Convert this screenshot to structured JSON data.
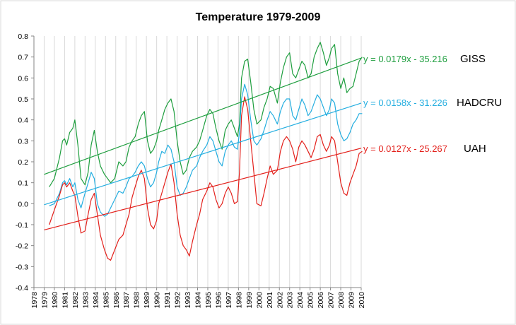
{
  "chart_data": {
    "type": "line",
    "title": "Temperature 1979-2009",
    "xlabel": "",
    "ylabel": "",
    "xlim": [
      1978,
      2010
    ],
    "ylim": [
      -0.4,
      0.8
    ],
    "y_ticks": [
      "-0.4",
      "-0.3",
      "-0.2",
      "-0.1",
      "0.0",
      "0.1",
      "0.2",
      "0.3",
      "0.4",
      "0.5",
      "0.6",
      "0.7",
      "0.8"
    ],
    "x_ticks": [
      "1978",
      "1979",
      "1980",
      "1981",
      "1982",
      "1983",
      "1984",
      "1985",
      "1986",
      "1987",
      "1988",
      "1989",
      "1990",
      "1991",
      "1992",
      "1993",
      "1994",
      "1995",
      "1996",
      "1997",
      "1998",
      "1999",
      "2000",
      "2001",
      "2002",
      "2003",
      "2004",
      "2005",
      "2006",
      "2007",
      "2008",
      "2009",
      "2010"
    ],
    "grid": {
      "vertical": true,
      "horizontal": false
    },
    "series": [
      {
        "name": "GISS",
        "color": "#1e9e3e",
        "x": [
          1979.5,
          1980.0,
          1980.5,
          1980.8,
          1981.0,
          1981.2,
          1981.5,
          1981.8,
          1982.0,
          1982.3,
          1982.6,
          1983.0,
          1983.3,
          1983.6,
          1983.9,
          1984.2,
          1984.5,
          1984.9,
          1985.2,
          1985.5,
          1985.9,
          1986.3,
          1986.7,
          1987.0,
          1987.3,
          1987.6,
          1987.9,
          1988.2,
          1988.5,
          1988.8,
          1989.1,
          1989.4,
          1989.7,
          1990.0,
          1990.2,
          1990.5,
          1990.8,
          1991.1,
          1991.4,
          1991.7,
          1992.0,
          1992.3,
          1992.6,
          1992.9,
          1993.2,
          1993.5,
          1993.9,
          1994.2,
          1994.5,
          1994.9,
          1995.2,
          1995.5,
          1995.8,
          1996.1,
          1996.4,
          1996.7,
          1997.0,
          1997.3,
          1997.6,
          1997.9,
          1998.1,
          1998.3,
          1998.6,
          1998.9,
          1999.2,
          1999.5,
          1999.8,
          2000.2,
          2000.5,
          2000.8,
          2001.1,
          2001.4,
          2001.8,
          2002.1,
          2002.4,
          2002.7,
          2003.0,
          2003.3,
          2003.6,
          2003.9,
          2004.2,
          2004.5,
          2004.8,
          2005.1,
          2005.4,
          2005.7,
          2006.0,
          2006.3,
          2006.6,
          2006.9,
          2007.1,
          2007.4,
          2007.7,
          2008.0,
          2008.3,
          2008.6,
          2008.9,
          2009.2,
          2009.5,
          2009.8,
          2010.1
        ],
        "values": [
          0.08,
          0.12,
          0.22,
          0.3,
          0.31,
          0.28,
          0.34,
          0.36,
          0.4,
          0.28,
          0.12,
          0.09,
          0.15,
          0.28,
          0.35,
          0.25,
          0.18,
          0.14,
          0.12,
          0.1,
          0.12,
          0.2,
          0.18,
          0.2,
          0.27,
          0.3,
          0.32,
          0.38,
          0.42,
          0.44,
          0.3,
          0.24,
          0.26,
          0.3,
          0.35,
          0.4,
          0.45,
          0.48,
          0.5,
          0.44,
          0.3,
          0.2,
          0.14,
          0.16,
          0.22,
          0.25,
          0.27,
          0.3,
          0.35,
          0.42,
          0.45,
          0.43,
          0.36,
          0.3,
          0.26,
          0.35,
          0.38,
          0.4,
          0.36,
          0.32,
          0.38,
          0.6,
          0.68,
          0.69,
          0.58,
          0.45,
          0.38,
          0.4,
          0.46,
          0.5,
          0.56,
          0.55,
          0.48,
          0.58,
          0.65,
          0.7,
          0.72,
          0.62,
          0.6,
          0.64,
          0.68,
          0.66,
          0.6,
          0.62,
          0.7,
          0.74,
          0.77,
          0.72,
          0.66,
          0.7,
          0.74,
          0.76,
          0.62,
          0.55,
          0.6,
          0.53,
          0.55,
          0.56,
          0.62,
          0.68,
          0.7
        ]
      },
      {
        "name": "HADCRU",
        "color": "#24aee0",
        "x": [
          1979.5,
          1980.0,
          1980.5,
          1980.8,
          1981.0,
          1981.2,
          1981.5,
          1981.8,
          1982.0,
          1982.3,
          1982.6,
          1983.0,
          1983.3,
          1983.6,
          1983.9,
          1984.2,
          1984.5,
          1984.9,
          1985.2,
          1985.5,
          1985.9,
          1986.3,
          1986.7,
          1987.0,
          1987.3,
          1987.6,
          1987.9,
          1988.2,
          1988.5,
          1988.8,
          1989.1,
          1989.4,
          1989.7,
          1990.0,
          1990.2,
          1990.5,
          1990.8,
          1991.1,
          1991.4,
          1991.7,
          1992.0,
          1992.3,
          1992.6,
          1992.9,
          1993.2,
          1993.5,
          1993.9,
          1994.2,
          1994.5,
          1994.9,
          1995.2,
          1995.5,
          1995.8,
          1996.1,
          1996.4,
          1996.7,
          1997.0,
          1997.3,
          1997.6,
          1997.9,
          1998.1,
          1998.3,
          1998.6,
          1998.9,
          1999.2,
          1999.5,
          1999.8,
          2000.2,
          2000.5,
          2000.8,
          2001.1,
          2001.4,
          2001.8,
          2002.1,
          2002.4,
          2002.7,
          2003.0,
          2003.3,
          2003.6,
          2003.9,
          2004.2,
          2004.5,
          2004.8,
          2005.1,
          2005.4,
          2005.7,
          2006.0,
          2006.3,
          2006.6,
          2006.9,
          2007.1,
          2007.4,
          2007.7,
          2008.0,
          2008.3,
          2008.6,
          2008.9,
          2009.2,
          2009.5,
          2009.8,
          2010.1
        ],
        "values": [
          -0.01,
          0.0,
          0.05,
          0.1,
          0.11,
          0.09,
          0.12,
          0.08,
          0.1,
          0.02,
          -0.02,
          0.05,
          0.1,
          0.15,
          0.12,
          0.0,
          -0.04,
          -0.06,
          -0.05,
          -0.02,
          0.02,
          0.06,
          0.05,
          0.08,
          0.12,
          0.13,
          0.15,
          0.18,
          0.2,
          0.18,
          0.12,
          0.08,
          0.1,
          0.15,
          0.2,
          0.25,
          0.24,
          0.28,
          0.26,
          0.2,
          0.08,
          0.04,
          0.05,
          0.08,
          0.12,
          0.16,
          0.18,
          0.22,
          0.25,
          0.28,
          0.32,
          0.3,
          0.25,
          0.2,
          0.18,
          0.25,
          0.28,
          0.3,
          0.27,
          0.26,
          0.34,
          0.5,
          0.57,
          0.52,
          0.4,
          0.3,
          0.28,
          0.31,
          0.35,
          0.4,
          0.44,
          0.42,
          0.38,
          0.44,
          0.48,
          0.5,
          0.5,
          0.42,
          0.4,
          0.45,
          0.5,
          0.47,
          0.42,
          0.44,
          0.48,
          0.52,
          0.5,
          0.46,
          0.42,
          0.45,
          0.5,
          0.48,
          0.38,
          0.33,
          0.3,
          0.31,
          0.34,
          0.38,
          0.4,
          0.43,
          0.43
        ]
      },
      {
        "name": "UAH",
        "color": "#e3201b",
        "x": [
          1979.5,
          1980.0,
          1980.5,
          1980.8,
          1981.0,
          1981.2,
          1981.5,
          1981.8,
          1982.0,
          1982.3,
          1982.6,
          1983.0,
          1983.3,
          1983.6,
          1983.9,
          1984.2,
          1984.5,
          1984.9,
          1985.2,
          1985.5,
          1985.9,
          1986.3,
          1986.7,
          1987.0,
          1987.3,
          1987.6,
          1987.9,
          1988.2,
          1988.5,
          1988.8,
          1989.1,
          1989.4,
          1989.7,
          1990.0,
          1990.2,
          1990.5,
          1990.8,
          1991.1,
          1991.4,
          1991.7,
          1992.0,
          1992.3,
          1992.6,
          1992.9,
          1993.2,
          1993.5,
          1993.9,
          1994.2,
          1994.5,
          1994.9,
          1995.2,
          1995.5,
          1995.8,
          1996.1,
          1996.4,
          1996.7,
          1997.0,
          1997.3,
          1997.6,
          1997.9,
          1998.1,
          1998.3,
          1998.6,
          1998.9,
          1999.2,
          1999.5,
          1999.8,
          2000.2,
          2000.5,
          2000.8,
          2001.1,
          2001.4,
          2001.8,
          2002.1,
          2002.4,
          2002.7,
          2003.0,
          2003.3,
          2003.6,
          2003.9,
          2004.2,
          2004.5,
          2004.8,
          2005.1,
          2005.4,
          2005.7,
          2006.0,
          2006.3,
          2006.6,
          2006.9,
          2007.1,
          2007.4,
          2007.7,
          2008.0,
          2008.3,
          2008.6,
          2008.9,
          2009.2,
          2009.5,
          2009.8,
          2010.1
        ],
        "values": [
          -0.1,
          -0.03,
          0.04,
          0.09,
          0.1,
          0.08,
          0.1,
          0.06,
          0.04,
          -0.06,
          -0.14,
          -0.13,
          -0.05,
          0.02,
          0.05,
          -0.05,
          -0.15,
          -0.22,
          -0.26,
          -0.27,
          -0.22,
          -0.17,
          -0.15,
          -0.1,
          -0.05,
          0.03,
          0.08,
          0.13,
          0.16,
          0.12,
          -0.02,
          -0.1,
          -0.12,
          -0.08,
          0.0,
          0.05,
          0.1,
          0.15,
          0.19,
          0.1,
          -0.05,
          -0.15,
          -0.2,
          -0.22,
          -0.25,
          -0.18,
          -0.1,
          -0.05,
          0.02,
          0.06,
          0.1,
          0.08,
          0.02,
          -0.02,
          0.0,
          0.05,
          0.08,
          0.05,
          0.0,
          0.01,
          0.15,
          0.42,
          0.51,
          0.45,
          0.3,
          0.15,
          0.0,
          -0.01,
          0.05,
          0.12,
          0.18,
          0.14,
          0.16,
          0.25,
          0.3,
          0.32,
          0.3,
          0.26,
          0.2,
          0.27,
          0.3,
          0.28,
          0.25,
          0.22,
          0.26,
          0.32,
          0.33,
          0.28,
          0.25,
          0.28,
          0.32,
          0.3,
          0.2,
          0.1,
          0.05,
          0.04,
          0.1,
          0.14,
          0.18,
          0.24,
          0.25
        ]
      }
    ],
    "trendlines": [
      {
        "series": "GISS",
        "slope": 0.0179,
        "y_start": 0.14,
        "y_end": 0.695,
        "equation": "y = 0.0179x - 35.216",
        "label": "GISS",
        "color": "#1e9e3e"
      },
      {
        "series": "HADCRU",
        "slope": 0.0158,
        "y_start": -0.005,
        "y_end": 0.48,
        "equation": "y = 0.0158x - 31.226",
        "label": "HADCRU",
        "color": "#24aee0"
      },
      {
        "series": "UAH",
        "slope": 0.0127,
        "y_start": -0.125,
        "y_end": 0.265,
        "equation": "y = 0.0127x - 25.267",
        "label": "UAH",
        "color": "#e3201b"
      }
    ],
    "trend_x_range": [
      1979.0,
      2010.0
    ]
  }
}
